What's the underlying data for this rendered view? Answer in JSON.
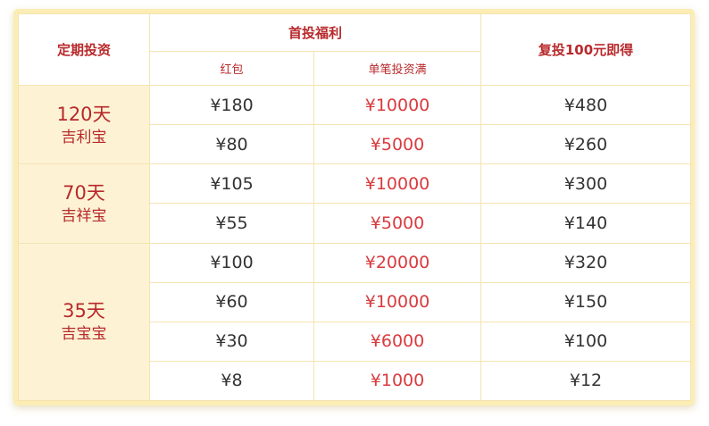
{
  "header": {
    "term": "定期投资",
    "first_benefit": "首投福利",
    "red_packet": "红包",
    "min_invest": "单笔投资满",
    "reinvest": "复投100元即得"
  },
  "groups": [
    {
      "days": "120天",
      "product": "吉利宝",
      "rows": [
        {
          "red_packet": "¥180",
          "min_invest": "¥10000",
          "reinvest": "¥480"
        },
        {
          "red_packet": "¥80",
          "min_invest": "¥5000",
          "reinvest": "¥260"
        }
      ]
    },
    {
      "days": "70天",
      "product": "吉祥宝",
      "rows": [
        {
          "red_packet": "¥105",
          "min_invest": "¥10000",
          "reinvest": "¥300"
        },
        {
          "red_packet": "¥55",
          "min_invest": "¥5000",
          "reinvest": "¥140"
        }
      ]
    },
    {
      "days": "35天",
      "product": "吉宝宝",
      "rows": [
        {
          "red_packet": "¥100",
          "min_invest": "¥20000",
          "reinvest": "¥320"
        },
        {
          "red_packet": "¥60",
          "min_invest": "¥10000",
          "reinvest": "¥150"
        },
        {
          "red_packet": "¥30",
          "min_invest": "¥6000",
          "reinvest": "¥100"
        },
        {
          "red_packet": "¥8",
          "min_invest": "¥1000",
          "reinvest": "¥12"
        }
      ]
    }
  ],
  "colors": {
    "accent_red": "#b8292c",
    "amount_red": "#d93b3e",
    "frame_yellow": "#fbedb4",
    "term_cell_bg": "#fdf3d4",
    "grid_line": "#f5e3b1"
  }
}
